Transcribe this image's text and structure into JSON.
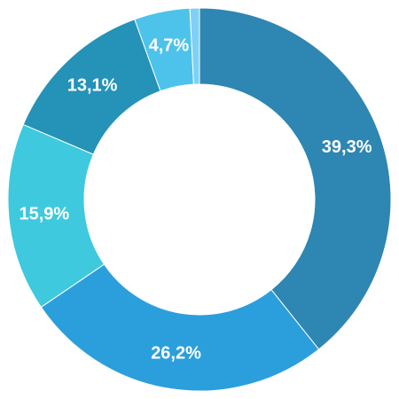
{
  "chart_data": {
    "type": "donut",
    "values": [
      39.3,
      26.2,
      15.9,
      13.1,
      4.7,
      0.8
    ],
    "value_labels": [
      "39,3%",
      "26,2%",
      "15,9%",
      "13,1%",
      "4,7%",
      null
    ],
    "colors": [
      "#2e86b2",
      "#2b9fdc",
      "#3ec9de",
      "#2592b8",
      "#4dc3ec",
      "#7fd0f5"
    ]
  }
}
